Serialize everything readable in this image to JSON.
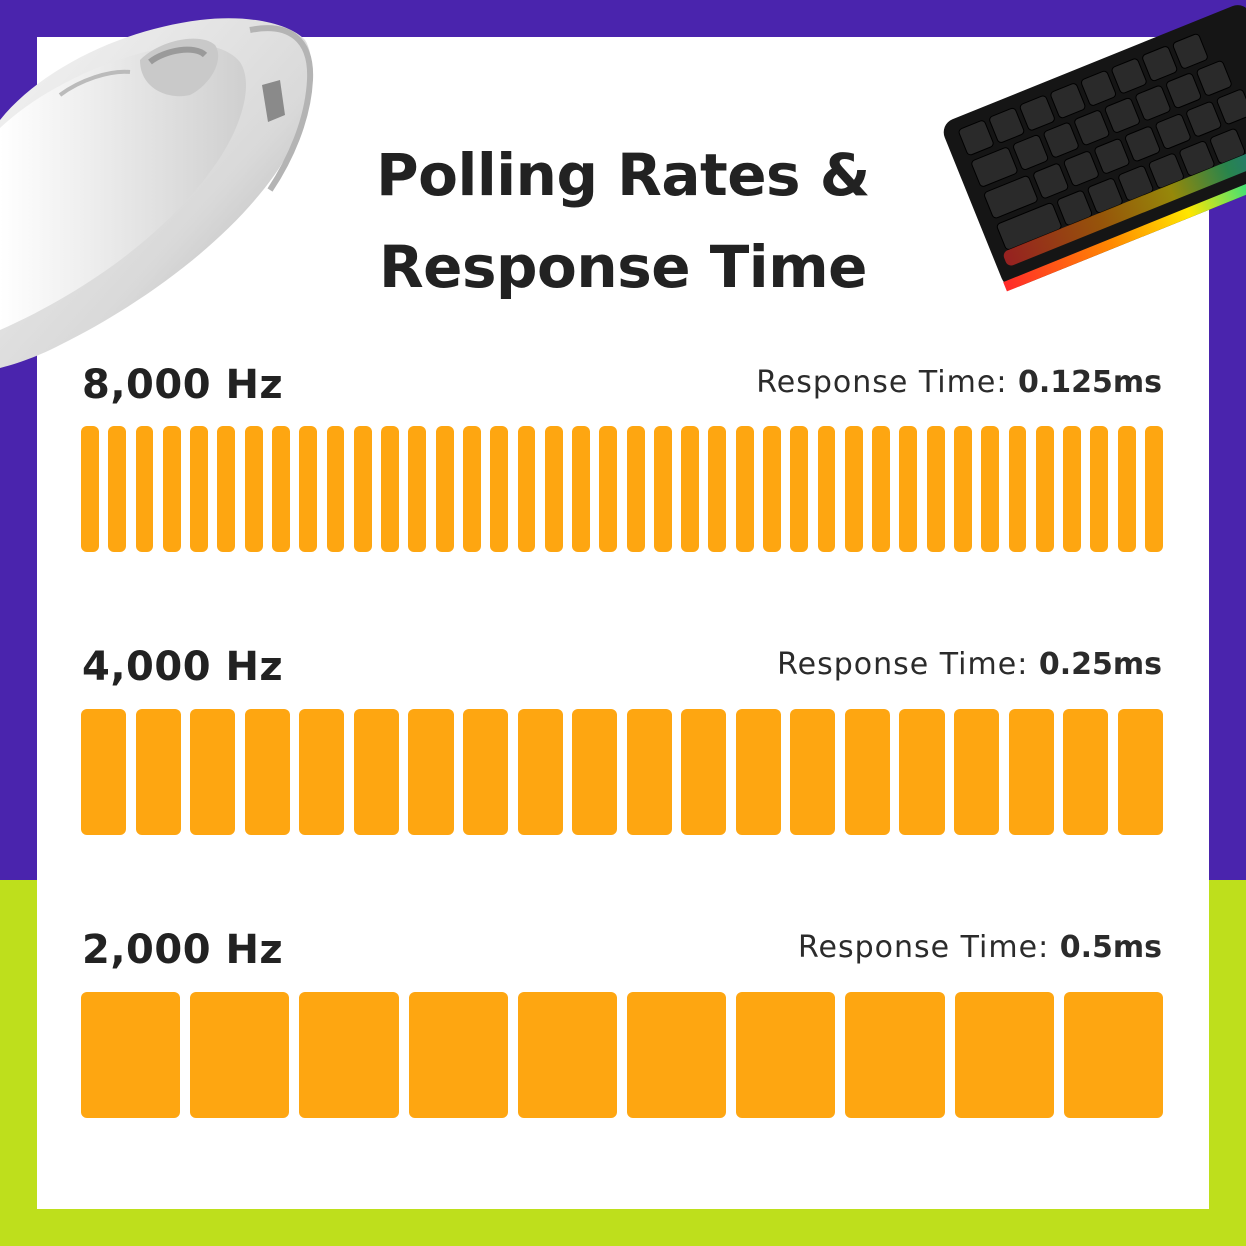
{
  "title": {
    "line1": "Polling Rates &",
    "line2": "Response Time"
  },
  "rows": [
    {
      "rate_label": "8,000 Hz",
      "response_label": "Response Time:",
      "response_value": "0.125ms",
      "bar_count": 40
    },
    {
      "rate_label": "4,000 Hz",
      "response_label": "Response Time:",
      "response_value": "0.25ms",
      "bar_count": 20
    },
    {
      "rate_label": "2,000 Hz",
      "response_label": "Response Time:",
      "response_value": "0.5ms",
      "bar_count": 10
    }
  ],
  "colors": {
    "bar": "#fea611",
    "purple": "#4a24ad",
    "green": "#bedf1c",
    "text": "#222222"
  },
  "images": {
    "mouse": "white-wireless-mouse",
    "keyboard": "rgb-mechanical-keyboard"
  }
}
